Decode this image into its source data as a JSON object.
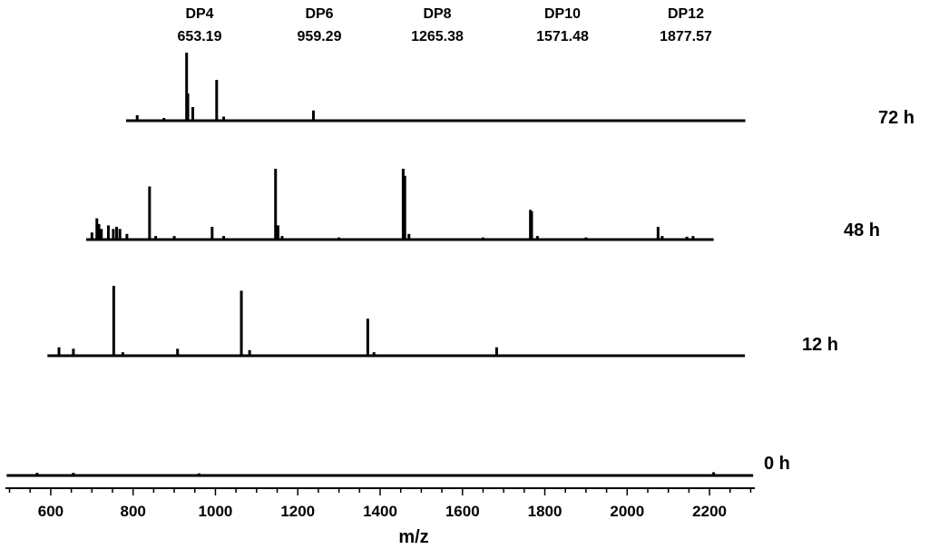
{
  "chart_data": {
    "type": "line",
    "title": "",
    "xlabel": "m/z",
    "ylabel": "",
    "xlim": [
      490,
      2310
    ],
    "ylim": [
      0,
      1
    ],
    "grid": false,
    "legend": "none",
    "xticks": [
      600,
      800,
      1000,
      1200,
      1400,
      1600,
      1800,
      2000,
      2200
    ],
    "peak_annotations": [
      {
        "name": "DP4",
        "mz": "653.19"
      },
      {
        "name": "DP6",
        "mz": "959.29"
      },
      {
        "name": "DP8",
        "mz": "1265.38"
      },
      {
        "name": "DP10",
        "mz": "1571.48"
      },
      {
        "name": "DP12",
        "mz": "1877.57"
      }
    ],
    "series": [
      {
        "name": "72 h",
        "range": [
          783,
          2287
        ],
        "peaks": [
          [
            810,
            0.08
          ],
          [
            875,
            0.04
          ],
          [
            930,
            1.0
          ],
          [
            933,
            0.4
          ],
          [
            945,
            0.2
          ],
          [
            1003,
            0.6
          ],
          [
            1020,
            0.06
          ],
          [
            1238,
            0.15
          ]
        ]
      },
      {
        "name": "48 h",
        "range": [
          686,
          2210
        ],
        "peaks": [
          [
            700,
            0.1
          ],
          [
            712,
            0.3
          ],
          [
            717,
            0.22
          ],
          [
            723,
            0.15
          ],
          [
            740,
            0.2
          ],
          [
            752,
            0.15
          ],
          [
            760,
            0.18
          ],
          [
            768,
            0.15
          ],
          [
            785,
            0.08
          ],
          [
            840,
            0.75
          ],
          [
            855,
            0.05
          ],
          [
            900,
            0.05
          ],
          [
            992,
            0.18
          ],
          [
            1020,
            0.05
          ],
          [
            1146,
            1.0
          ],
          [
            1152,
            0.2
          ],
          [
            1162,
            0.05
          ],
          [
            1300,
            0.03
          ],
          [
            1456,
            1.0
          ],
          [
            1460,
            0.9
          ],
          [
            1470,
            0.08
          ],
          [
            1650,
            0.03
          ],
          [
            1765,
            0.42
          ],
          [
            1768,
            0.4
          ],
          [
            1782,
            0.05
          ],
          [
            1900,
            0.03
          ],
          [
            2075,
            0.18
          ],
          [
            2085,
            0.05
          ],
          [
            2145,
            0.04
          ],
          [
            2160,
            0.05
          ]
        ]
      },
      {
        "name": "12 h",
        "range": [
          592,
          2286
        ],
        "peaks": [
          [
            620,
            0.12
          ],
          [
            655,
            0.1
          ],
          [
            753,
            1.0
          ],
          [
            775,
            0.05
          ],
          [
            908,
            0.1
          ],
          [
            1063,
            0.93
          ],
          [
            1083,
            0.08
          ],
          [
            1370,
            0.53
          ],
          [
            1385,
            0.05
          ],
          [
            1683,
            0.12
          ]
        ]
      },
      {
        "name": "0 h",
        "range": [
          493,
          2306
        ],
        "peaks": [
          [
            567,
            0.05
          ],
          [
            655,
            0.05
          ],
          [
            960,
            0.04
          ],
          [
            2210,
            0.06
          ]
        ]
      }
    ]
  }
}
